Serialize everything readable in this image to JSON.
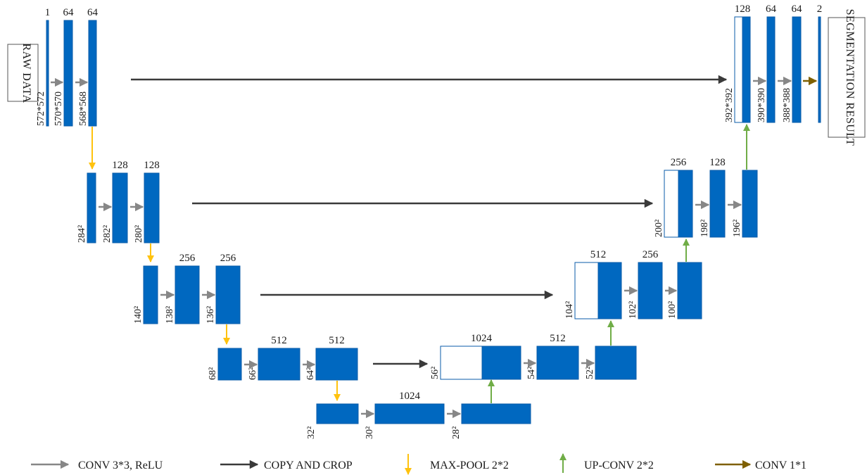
{
  "inputs": {
    "raw_data": "RAW DATA",
    "segmentation_result": "SEGMENTATION RESULT"
  },
  "colors": {
    "block": "#0068C0",
    "block_stroke": "#0A5BA8",
    "conv_arrow": "#878787",
    "copy_arrow": "#3A3A3A",
    "pool_arrow": "#FFC20E",
    "upconv_arrow": "#70AD47",
    "conv1x1_arrow": "#7F6000"
  },
  "encoder": [
    {
      "channels": [
        "1",
        "64",
        "64"
      ],
      "sizes": [
        "572*572",
        "570*570",
        "568*568"
      ]
    },
    {
      "channels": [
        "",
        "128",
        "128"
      ],
      "sizes": [
        "284²",
        "282²",
        "280²"
      ]
    },
    {
      "channels": [
        "",
        "256",
        "256"
      ],
      "sizes": [
        "140²",
        "138²",
        "136²"
      ]
    },
    {
      "channels": [
        "",
        "512",
        "512"
      ],
      "sizes": [
        "68²",
        "66²",
        "64²"
      ]
    }
  ],
  "bottleneck": {
    "channels": [
      "",
      "1024",
      ""
    ],
    "sizes": [
      "32²",
      "30²",
      "28²"
    ]
  },
  "decoder": [
    {
      "channels": [
        "1024",
        "512",
        ""
      ],
      "sizes": [
        "56²",
        "54²",
        "52²"
      ]
    },
    {
      "channels": [
        "512",
        "256",
        ""
      ],
      "sizes": [
        "104²",
        "102²",
        "100²"
      ]
    },
    {
      "channels": [
        "256",
        "128",
        ""
      ],
      "sizes": [
        "200²",
        "198²",
        "196²"
      ]
    },
    {
      "channels": [
        "128",
        "64",
        "64",
        "2"
      ],
      "sizes": [
        "392*392",
        "390*390",
        "388*388"
      ]
    }
  ],
  "legend": [
    {
      "key": "conv",
      "label": "CONV 3*3, ReLU"
    },
    {
      "key": "copy",
      "label": "COPY AND CROP"
    },
    {
      "key": "pool",
      "label": "MAX-POOL 2*2"
    },
    {
      "key": "upconv",
      "label": "UP-CONV 2*2"
    },
    {
      "key": "conv1x1",
      "label": "CONV 1*1"
    }
  ]
}
